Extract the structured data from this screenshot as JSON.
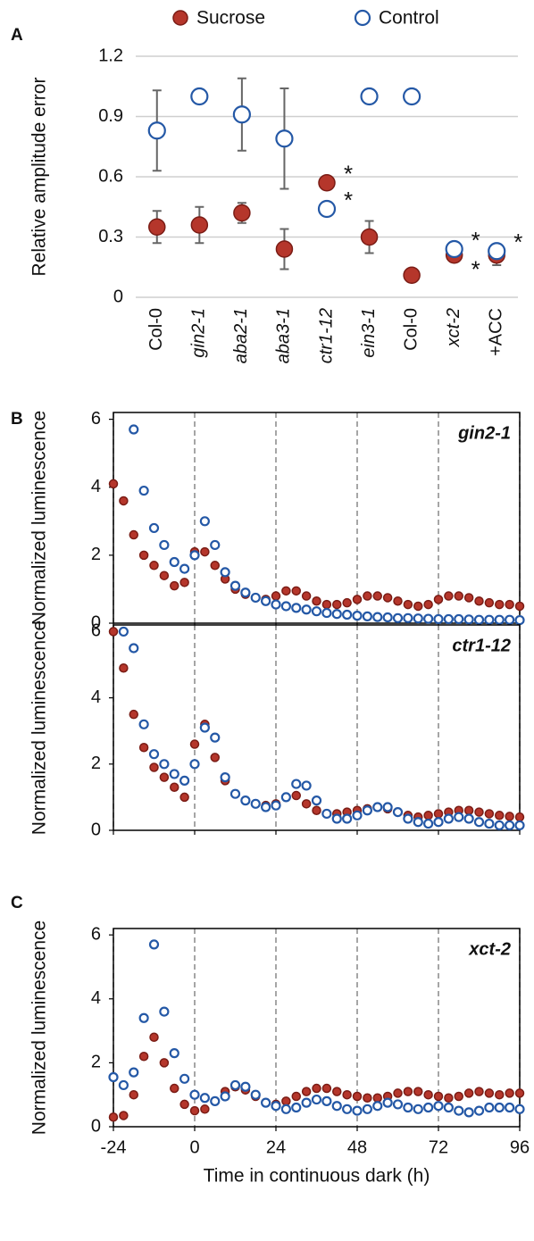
{
  "chart_data": [
    {
      "type": "dot",
      "panel_label": "A",
      "y_label": "Relative amplitude error",
      "categories": [
        "Col-0",
        "gin2-1",
        "aba2-1",
        "aba3-1",
        "ctr1-12",
        "ein3-1",
        "Col-0",
        "xct-2",
        "+ACC"
      ],
      "category_italic": [
        false,
        true,
        true,
        true,
        true,
        true,
        false,
        true,
        false
      ],
      "ylim": [
        0,
        1.2
      ],
      "yticks": [
        0,
        0.3,
        0.6,
        0.9,
        1.2
      ],
      "grid": true,
      "legend": "top",
      "series": [
        {
          "name": "Sucrose",
          "color": "#b5362b",
          "edge": "#7a1c15",
          "filled": true,
          "values": [
            0.35,
            0.36,
            0.42,
            0.24,
            0.57,
            0.3,
            0.11,
            0.21,
            0.21
          ],
          "errors": [
            0.08,
            0.09,
            0.05,
            0.1,
            null,
            0.08,
            null,
            0.03,
            0.05
          ],
          "asterisks": [
            null,
            null,
            null,
            null,
            "*",
            null,
            null,
            "*",
            null
          ]
        },
        {
          "name": "Control",
          "color": "#ffffff",
          "edge": "#2458a6",
          "filled": false,
          "values": [
            0.83,
            1.0,
            0.91,
            0.79,
            0.44,
            1.0,
            1.0,
            0.24,
            0.23
          ],
          "errors": [
            0.2,
            null,
            0.18,
            0.25,
            null,
            null,
            null,
            null,
            null
          ],
          "asterisks": [
            null,
            null,
            null,
            null,
            "*",
            null,
            null,
            "*",
            "*"
          ]
        }
      ]
    },
    {
      "type": "scatter",
      "panel_label": "B",
      "title": "gin2-1",
      "y_label": "Normalized luminescence",
      "x": [
        -24,
        -21,
        -18,
        -15,
        -12,
        -9,
        -6,
        -3,
        0,
        3,
        6,
        9,
        12,
        15,
        18,
        21,
        24,
        27,
        30,
        33,
        36,
        39,
        42,
        45,
        48,
        51,
        54,
        57,
        60,
        63,
        66,
        69,
        72,
        75,
        78,
        81,
        84,
        87,
        90,
        93,
        96
      ],
      "xlim": [
        -24,
        96
      ],
      "xticks": [
        -24,
        0,
        24,
        48,
        72,
        96
      ],
      "xgrid": true,
      "show_xtick_labels": false,
      "ylim": [
        0,
        6.2
      ],
      "yticks": [
        0,
        2,
        4,
        6
      ],
      "frame": true,
      "series": [
        {
          "color": "#b5362b",
          "edge": "#7a1c15",
          "filled": true,
          "values": [
            4.1,
            3.6,
            2.6,
            2.0,
            1.7,
            1.4,
            1.1,
            1.2,
            2.1,
            2.1,
            1.7,
            1.3,
            1.0,
            0.85,
            0.75,
            0.7,
            0.8,
            0.95,
            0.95,
            0.8,
            0.65,
            0.55,
            0.55,
            0.6,
            0.7,
            0.8,
            0.8,
            0.75,
            0.65,
            0.55,
            0.5,
            0.55,
            0.7,
            0.8,
            0.8,
            0.75,
            0.65,
            0.6,
            0.55,
            0.55,
            0.5
          ]
        },
        {
          "color": "#ffffff",
          "edge": "#2458a6",
          "filled": false,
          "values": [
            null,
            null,
            5.7,
            3.9,
            2.8,
            2.3,
            1.8,
            1.6,
            2.0,
            3.0,
            2.3,
            1.5,
            1.1,
            0.9,
            0.75,
            0.65,
            0.55,
            0.5,
            0.45,
            0.4,
            0.35,
            0.3,
            0.27,
            0.25,
            0.22,
            0.2,
            0.18,
            0.17,
            0.15,
            0.15,
            0.14,
            0.13,
            0.12,
            0.12,
            0.12,
            0.11,
            0.1,
            0.1,
            0.1,
            0.1,
            0.09
          ]
        }
      ]
    },
    {
      "type": "scatter",
      "title": "ctr1-12",
      "y_label": "Normalized luminescence",
      "x": [
        -24,
        -21,
        -18,
        -15,
        -12,
        -9,
        -6,
        -3,
        0,
        3,
        6,
        9,
        12,
        15,
        18,
        21,
        24,
        27,
        30,
        33,
        36,
        39,
        42,
        45,
        48,
        51,
        54,
        57,
        60,
        63,
        66,
        69,
        72,
        75,
        78,
        81,
        84,
        87,
        90,
        93,
        96
      ],
      "xlim": [
        -24,
        96
      ],
      "xticks": [
        -24,
        0,
        24,
        48,
        72,
        96
      ],
      "xgrid": true,
      "show_xtick_labels": false,
      "ylim": [
        0,
        6.2
      ],
      "yticks": [
        0,
        2,
        4,
        6
      ],
      "frame": true,
      "series": [
        {
          "color": "#b5362b",
          "edge": "#7a1c15",
          "filled": true,
          "values": [
            6.0,
            4.9,
            3.5,
            2.5,
            1.9,
            1.6,
            1.3,
            1.0,
            2.6,
            3.2,
            2.2,
            1.5,
            1.1,
            0.9,
            0.8,
            0.75,
            0.8,
            1.0,
            1.05,
            0.8,
            0.6,
            0.5,
            0.5,
            0.55,
            0.6,
            0.65,
            0.7,
            0.65,
            0.55,
            0.45,
            0.4,
            0.45,
            0.5,
            0.55,
            0.6,
            0.6,
            0.55,
            0.5,
            0.45,
            0.42,
            0.4
          ]
        },
        {
          "color": "#ffffff",
          "edge": "#2458a6",
          "filled": false,
          "values": [
            null,
            6.0,
            5.5,
            3.2,
            2.3,
            2.0,
            1.7,
            1.5,
            2.0,
            3.1,
            2.8,
            1.6,
            1.1,
            0.9,
            0.8,
            0.7,
            0.75,
            1.0,
            1.4,
            1.35,
            0.9,
            0.5,
            0.35,
            0.35,
            0.45,
            0.6,
            0.7,
            0.7,
            0.55,
            0.35,
            0.25,
            0.2,
            0.25,
            0.35,
            0.4,
            0.35,
            0.25,
            0.2,
            0.15,
            0.15,
            0.15
          ]
        }
      ]
    },
    {
      "type": "scatter",
      "panel_label": "C",
      "title": "xct-2",
      "y_label": "Normalized luminescence",
      "x_label": "Time in continuous dark (h)",
      "x": [
        -24,
        -21,
        -18,
        -15,
        -12,
        -9,
        -6,
        -3,
        0,
        3,
        6,
        9,
        12,
        15,
        18,
        21,
        24,
        27,
        30,
        33,
        36,
        39,
        42,
        45,
        48,
        51,
        54,
        57,
        60,
        63,
        66,
        69,
        72,
        75,
        78,
        81,
        84,
        87,
        90,
        93,
        96
      ],
      "xlim": [
        -24,
        96
      ],
      "xticks": [
        -24,
        0,
        24,
        48,
        72,
        96
      ],
      "xgrid": true,
      "show_xtick_labels": true,
      "ylim": [
        0,
        6.2
      ],
      "yticks": [
        0,
        2,
        4,
        6
      ],
      "frame": true,
      "series": [
        {
          "color": "#b5362b",
          "edge": "#7a1c15",
          "filled": true,
          "values": [
            0.3,
            0.35,
            1.0,
            2.2,
            2.8,
            2.0,
            1.2,
            0.7,
            0.5,
            0.55,
            0.8,
            1.1,
            1.25,
            1.15,
            0.95,
            0.75,
            0.7,
            0.8,
            0.95,
            1.1,
            1.2,
            1.2,
            1.1,
            1.0,
            0.95,
            0.9,
            0.9,
            0.95,
            1.05,
            1.1,
            1.1,
            1.0,
            0.95,
            0.9,
            0.95,
            1.05,
            1.1,
            1.05,
            1.0,
            1.05,
            1.05
          ]
        },
        {
          "color": "#ffffff",
          "edge": "#2458a6",
          "filled": false,
          "values": [
            1.55,
            1.3,
            1.7,
            3.4,
            5.7,
            3.6,
            2.3,
            1.5,
            1.0,
            0.9,
            0.8,
            0.95,
            1.3,
            1.25,
            1.0,
            0.75,
            0.65,
            0.55,
            0.6,
            0.75,
            0.85,
            0.8,
            0.65,
            0.55,
            0.5,
            0.55,
            0.65,
            0.75,
            0.7,
            0.6,
            0.55,
            0.6,
            0.65,
            0.6,
            0.5,
            0.45,
            0.5,
            0.6,
            0.6,
            0.6,
            0.55
          ]
        }
      ]
    }
  ]
}
